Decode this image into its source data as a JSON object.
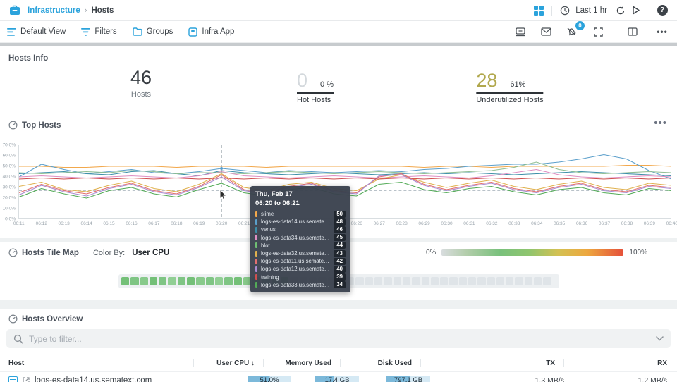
{
  "header": {
    "breadcrumb": {
      "app": "Infrastructure",
      "separator": "›",
      "page": "Hosts"
    },
    "time_range": "Last 1 hr"
  },
  "toolbar": {
    "buttons": [
      {
        "label": "Default View"
      },
      {
        "label": "Filters"
      },
      {
        "label": "Groups"
      },
      {
        "label": "Infra App"
      }
    ],
    "alert_badge": "0",
    "more": "•••"
  },
  "hosts_info": {
    "title": "Hosts Info",
    "stats": [
      {
        "value": "46",
        "label": "Hosts"
      },
      {
        "value": "0",
        "pct": "0 %",
        "label": "Hot Hosts"
      },
      {
        "value": "28",
        "pct": "61%",
        "label": "Underutilized Hosts"
      }
    ],
    "hot_value_color": "#d4d9dd",
    "underutilized_value_color": "#b1a84d"
  },
  "top_hosts": {
    "title": "Top Hosts",
    "menu": "•••"
  },
  "chart_data": {
    "type": "line",
    "title": "Top Hosts",
    "ylabel": "CPU usage %",
    "ylim": [
      0,
      70
    ],
    "y_ticks": [
      "70.0%",
      "60.0%",
      "50.0%",
      "40.0%",
      "30.0%",
      "20.0%",
      "10.0%",
      "0.0%"
    ],
    "x": [
      "06:11",
      "06:12",
      "06:13",
      "06:14",
      "06:15",
      "06:16",
      "06:17",
      "06:18",
      "06:19",
      "06:20",
      "06:21",
      "06:22",
      "06:23",
      "06:24",
      "06:25",
      "06:26",
      "06:27",
      "06:28",
      "06:29",
      "06:30",
      "06:31",
      "06:32",
      "06:33",
      "06:34",
      "06:35",
      "06:36",
      "06:37",
      "06:38",
      "06:39",
      "06:40"
    ],
    "hover_x": "06:20",
    "threshold": 27,
    "grid": false,
    "legend_position": "tooltip",
    "series": [
      {
        "name": "slime",
        "color": "#f2a84c",
        "values": [
          50,
          50,
          49,
          49,
          50,
          50,
          50,
          49,
          50,
          50,
          50,
          49,
          50,
          50,
          50,
          50,
          50,
          50,
          49,
          50,
          50,
          49,
          50,
          50,
          50,
          50,
          50,
          51,
          51,
          50
        ]
      },
      {
        "name": "logs-es-data14.us.sematext.com",
        "color": "#5b9fcb",
        "values": [
          40,
          52,
          47,
          43,
          45,
          47,
          44,
          43,
          45,
          48,
          46,
          44,
          46,
          45,
          44,
          45,
          46,
          45,
          47,
          48,
          50,
          51,
          52,
          52,
          54,
          57,
          61,
          57,
          46,
          38
        ]
      },
      {
        "name": "venus",
        "color": "#3d8fa8",
        "values": [
          43,
          44,
          45,
          43,
          42,
          45,
          46,
          43,
          41,
          46,
          44,
          43,
          42,
          43,
          44,
          43,
          42,
          43,
          44,
          43,
          44,
          43,
          42,
          43,
          44,
          45,
          44,
          43,
          42,
          41
        ]
      },
      {
        "name": "logs-es-data34.us.sematext.com",
        "color": "#df8fc3",
        "values": [
          40,
          41,
          40,
          39,
          40,
          41,
          40,
          39,
          41,
          45,
          41,
          40,
          39,
          40,
          41,
          40,
          39,
          40,
          41,
          40,
          39,
          41,
          44,
          47,
          42,
          40,
          39,
          40,
          41,
          40
        ]
      },
      {
        "name": "blot",
        "color": "#8fbe92",
        "values": [
          44,
          43,
          44,
          45,
          44,
          46,
          45,
          43,
          44,
          44,
          43,
          44,
          45,
          44,
          43,
          44,
          45,
          44,
          43,
          44,
          45,
          46,
          49,
          54,
          47,
          44,
          43,
          44,
          45,
          44
        ]
      },
      {
        "name": "logs-es-data32.us.sematext.com",
        "color": "#e0b14e",
        "values": [
          31,
          35,
          28,
          26,
          32,
          36,
          29,
          26,
          33,
          43,
          30,
          27,
          33,
          35,
          29,
          27,
          38,
          42,
          35,
          30,
          34,
          37,
          31,
          28,
          33,
          36,
          30,
          28,
          34,
          32
        ]
      },
      {
        "name": "logs-es-data11.us.sematext.com",
        "color": "#e26f6f",
        "values": [
          25,
          33,
          27,
          24,
          30,
          34,
          27,
          24,
          31,
          42,
          28,
          25,
          31,
          34,
          27,
          25,
          40,
          43,
          33,
          28,
          32,
          35,
          29,
          26,
          31,
          34,
          28,
          26,
          32,
          30
        ]
      },
      {
        "name": "logs-es-data12.us.sematext.com",
        "color": "#a98bd0",
        "values": [
          23,
          32,
          26,
          22,
          29,
          33,
          26,
          23,
          30,
          40,
          27,
          24,
          30,
          33,
          26,
          24,
          41,
          42,
          32,
          27,
          31,
          34,
          28,
          25,
          30,
          33,
          27,
          25,
          31,
          29
        ]
      },
      {
        "name": "training",
        "color": "#cf4f4f",
        "values": [
          38,
          39,
          38,
          39,
          38,
          39,
          38,
          39,
          38,
          39,
          38,
          39,
          38,
          39,
          38,
          39,
          38,
          39,
          38,
          39,
          38,
          39,
          38,
          39,
          38,
          39,
          38,
          39,
          38,
          39
        ]
      },
      {
        "name": "logs-es-data33.us.sematext.com",
        "color": "#53ab57",
        "values": [
          21,
          29,
          24,
          20,
          27,
          30,
          24,
          21,
          28,
          34,
          25,
          22,
          28,
          30,
          24,
          22,
          33,
          35,
          28,
          25,
          29,
          31,
          26,
          23,
          28,
          30,
          25,
          23,
          29,
          27
        ]
      }
    ]
  },
  "tooltip": {
    "date": "Thu, Feb 17",
    "range": "06:20 to 06:21",
    "rows": [
      {
        "name": "slime",
        "value": "50",
        "color": "#f2a84c"
      },
      {
        "name": "logs-es-data14.us.sematext.com",
        "value": "48",
        "color": "#5b9fcb"
      },
      {
        "name": "venus",
        "value": "46",
        "color": "#3d8fa8"
      },
      {
        "name": "logs-es-data34.us.sematext.com",
        "value": "45",
        "color": "#df8fc3"
      },
      {
        "name": "blot",
        "value": "44",
        "color": "#6fbf73"
      },
      {
        "name": "logs-es-data32.us.sematext.com",
        "value": "43",
        "color": "#e0b14e"
      },
      {
        "name": "logs-es-data11.us.sematext.com",
        "value": "42",
        "color": "#e26f6f"
      },
      {
        "name": "logs-es-data12.us.sematext.com",
        "value": "40",
        "color": "#a98bd0"
      },
      {
        "name": "training",
        "value": "39",
        "color": "#cf4f4f"
      },
      {
        "name": "logs-es-data33.us.sematext.com",
        "value": "34",
        "color": "#53ab57"
      }
    ]
  },
  "tilemap": {
    "title": "Hosts Tile Map",
    "color_by_label": "Color By:",
    "color_by": "User CPU",
    "legend_min": "0%",
    "legend_max": "100%",
    "tiles": [
      "#74c078",
      "#7fc584",
      "#88ca8b",
      "#74c078",
      "#7fc584",
      "#91cf94",
      "#7fc584",
      "#74c078",
      "#88ca8b",
      "#7fc584",
      "#91cf94",
      "#7fc584",
      "#74c078",
      "#88ca8b",
      "#7fc584",
      "#8bcc8e",
      "#7fc584",
      "#88ca8b",
      "#dfe4e8",
      "#dfe4e8",
      "#dfe4e8",
      "#dfe4e8",
      "#dfe4e8",
      "#dfe4e8",
      "#dfe4e8",
      "#dfe4e8",
      "#dfe4e8",
      "#dfe4e8",
      "#dfe4e8",
      "#dfe4e8",
      "#dfe4e8",
      "#dfe4e8",
      "#dfe4e8",
      "#dfe4e8",
      "#dfe4e8",
      "#dfe4e8",
      "#dfe4e8",
      "#dfe4e8",
      "#dfe4e8",
      "#dfe4e8",
      "#dfe4e8",
      "#dfe4e8",
      "#dfe4e8",
      "#dfe4e8",
      "#dfe4e8",
      "#dfe4e8"
    ]
  },
  "hosts_overview": {
    "title": "Hosts Overview",
    "filter_placeholder": "Type to filter...",
    "table": {
      "columns": [
        "Host",
        "User CPU ↓",
        "Memory Used",
        "Disk Used",
        "TX",
        "RX"
      ],
      "rows": [
        {
          "host": "logs-es-data14.us.sematext.com",
          "user_cpu": "51.0%",
          "cpu_fill": 51,
          "memory": "17.4 GB",
          "mem_fill": 42,
          "disk": "797.1 GB",
          "disk_fill": 55,
          "tx": "1.3 MB/s",
          "rx": "1.2 MB/s"
        }
      ]
    }
  }
}
